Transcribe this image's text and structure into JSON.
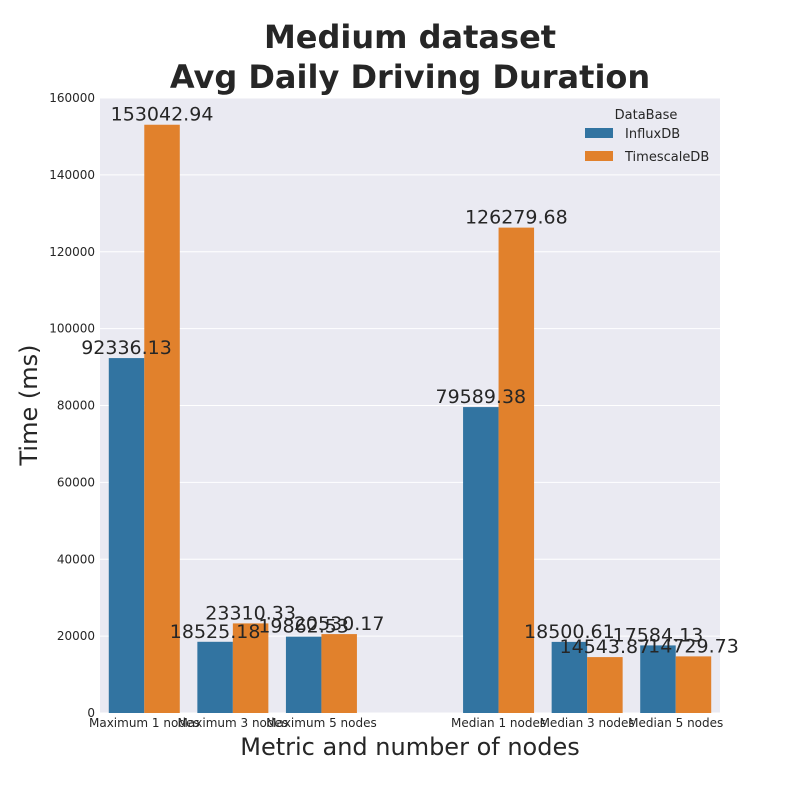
{
  "chart_data": {
    "type": "bar",
    "title_line1": "Medium dataset",
    "title_line2": "Avg Daily Driving Duration",
    "xlabel": "Metric and number of nodes",
    "ylabel": "Time (ms)",
    "categories": [
      "Maximum 1 nodes",
      "Maximum 3 nodes",
      "Maximum 5 nodes",
      "",
      "Median 1 nodes",
      "Median 3 nodes",
      "Median 5 nodes"
    ],
    "series": [
      {
        "name": "InfluxDB",
        "values": [
          92336.13,
          18525.18,
          19862.53,
          null,
          79589.38,
          18500.61,
          17584.13
        ],
        "labels": [
          "92336.13",
          "18525.18",
          "19862.53",
          "",
          "79589.38",
          "18500.61",
          "17584.13"
        ]
      },
      {
        "name": "TimescaleDB",
        "values": [
          153042.94,
          23310.33,
          20530.17,
          null,
          126279.68,
          14543.87,
          14729.73
        ],
        "labels": [
          "153042.94",
          "23310.33",
          "20530.17",
          "",
          "126279.68",
          "14543.87",
          "14729.73"
        ]
      }
    ],
    "ylim": [
      0,
      160000
    ],
    "yticks": [
      0,
      20000,
      40000,
      60000,
      80000,
      100000,
      120000,
      140000,
      160000
    ],
    "ytick_labels": [
      "0",
      "20000",
      "40000",
      "60000",
      "80000",
      "100000",
      "120000",
      "140000",
      "160000"
    ],
    "legend_title": "DataBase",
    "legend_position": "top-right",
    "grid": "horizontal",
    "colors": {
      "InfluxDB": "#3274a1",
      "TimescaleDB": "#e1812c",
      "plot_bg": "#eaeaf2",
      "grid": "#ffffff",
      "text": "#262626"
    }
  }
}
